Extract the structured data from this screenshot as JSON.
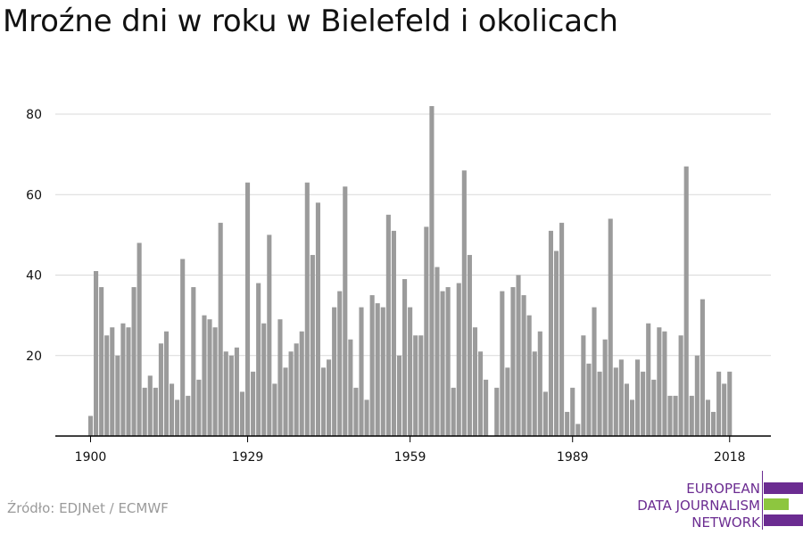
{
  "header": {
    "title": "Mroźne dni w roku w Bielefeld i okolicach"
  },
  "footer": {
    "source": "Źródło: EDJNet / ECMWF"
  },
  "logo": {
    "lines": [
      "EUROPEAN",
      "DATA JOURNALISM",
      "NETWORK"
    ],
    "colors": {
      "text": "#6b2c91",
      "purple": "#6b2c91",
      "green": "#8dc63f"
    }
  },
  "colors": {
    "bar": "#9b9b9b",
    "grid": "#d9d9d9",
    "axis": "#000000"
  },
  "chart_data": {
    "type": "bar",
    "title": "Mroźne dni w roku w Bielefeld i okolicach",
    "xlabel": "",
    "ylabel": "",
    "ylim": [
      0,
      85
    ],
    "yticks": [
      20,
      40,
      60,
      80
    ],
    "xticks": [
      1900,
      1929,
      1959,
      1989,
      2018
    ],
    "grid": true,
    "x": [
      1900,
      1901,
      1902,
      1903,
      1904,
      1905,
      1906,
      1907,
      1908,
      1909,
      1910,
      1911,
      1912,
      1913,
      1914,
      1915,
      1916,
      1917,
      1918,
      1919,
      1920,
      1921,
      1922,
      1923,
      1924,
      1925,
      1926,
      1927,
      1928,
      1929,
      1930,
      1931,
      1932,
      1933,
      1934,
      1935,
      1936,
      1937,
      1938,
      1939,
      1940,
      1941,
      1942,
      1943,
      1944,
      1945,
      1946,
      1947,
      1948,
      1949,
      1950,
      1951,
      1952,
      1953,
      1954,
      1955,
      1956,
      1957,
      1958,
      1959,
      1960,
      1961,
      1962,
      1963,
      1964,
      1965,
      1966,
      1967,
      1968,
      1969,
      1970,
      1971,
      1972,
      1973,
      1974,
      1975,
      1976,
      1977,
      1978,
      1979,
      1980,
      1981,
      1982,
      1983,
      1984,
      1985,
      1986,
      1987,
      1988,
      1989,
      1990,
      1991,
      1992,
      1993,
      1994,
      1995,
      1996,
      1997,
      1998,
      1999,
      2000,
      2001,
      2002,
      2003,
      2004,
      2005,
      2006,
      2007,
      2008,
      2009,
      2010,
      2011,
      2012,
      2013,
      2014,
      2015,
      2016,
      2017,
      2018
    ],
    "values": [
      5,
      41,
      37,
      25,
      27,
      20,
      28,
      27,
      37,
      48,
      12,
      15,
      12,
      23,
      26,
      13,
      9,
      44,
      10,
      37,
      14,
      30,
      29,
      27,
      53,
      21,
      20,
      22,
      11,
      63,
      16,
      38,
      28,
      50,
      13,
      29,
      17,
      21,
      23,
      26,
      63,
      45,
      58,
      17,
      19,
      32,
      36,
      62,
      24,
      12,
      32,
      9,
      35,
      33,
      32,
      55,
      51,
      20,
      39,
      32,
      25,
      25,
      52,
      82,
      42,
      36,
      37,
      12,
      38,
      66,
      45,
      27,
      21,
      14,
      0,
      12,
      36,
      17,
      37,
      40,
      35,
      30,
      21,
      26,
      11,
      51,
      46,
      53,
      6,
      12,
      3,
      25,
      18,
      32,
      16,
      24,
      54,
      17,
      19,
      13,
      9,
      19,
      16,
      28,
      14,
      27,
      26,
      10,
      10,
      25,
      67,
      10,
      20,
      34,
      9,
      6,
      16,
      13,
      16
    ]
  }
}
